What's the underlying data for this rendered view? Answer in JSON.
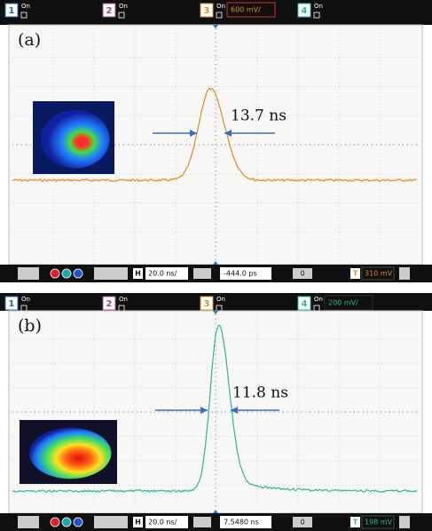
{
  "panels": [
    {
      "label": "(a)",
      "channels": [
        {
          "number": "1",
          "state": "On"
        },
        {
          "number": "2",
          "state": "On"
        },
        {
          "number": "3",
          "state": "On"
        },
        {
          "number": "4",
          "state": "On"
        }
      ],
      "vertical_scale": "600 mV/",
      "annotation": "13.7 ns",
      "bottom": {
        "timebase_icon": "H",
        "timebase": "20.0 ns/",
        "position": "-444.0 ps",
        "index": "0",
        "trigger_icon": "T",
        "trigger": "310 mV"
      }
    },
    {
      "label": "(b)",
      "channels": [
        {
          "number": "1",
          "state": "On"
        },
        {
          "number": "2",
          "state": "On"
        },
        {
          "number": "3",
          "state": "On"
        },
        {
          "number": "4",
          "state": "On"
        }
      ],
      "vertical_scale": "200 mV/",
      "annotation": "11.8 ns",
      "bottom": {
        "timebase_icon": "H",
        "timebase": "20.0 ns/",
        "position": "7.5480 ns",
        "index": "0",
        "trigger_icon": "T",
        "trigger": "198 mV"
      }
    }
  ]
}
